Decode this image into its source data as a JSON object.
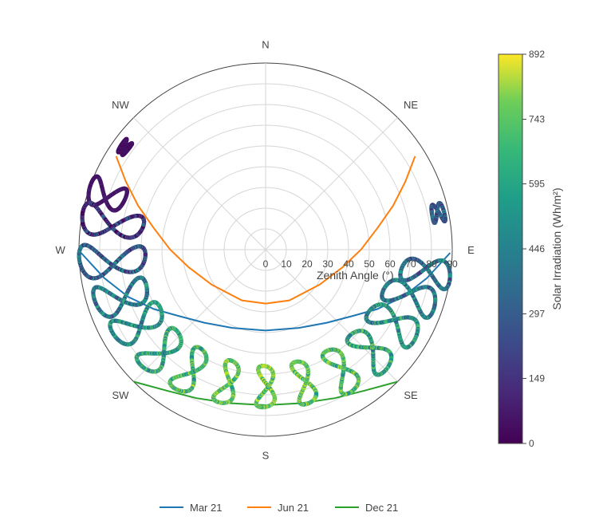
{
  "chart_data": {
    "type": "polar-scatter",
    "radial_axis": {
      "title": "Zenith Angle (°)",
      "range": [
        0,
        90
      ],
      "ticks": [
        0,
        10,
        20,
        30,
        40,
        50,
        60,
        70,
        80,
        90
      ]
    },
    "angular_axis": {
      "labels": [
        {
          "text": "N",
          "az": 0
        },
        {
          "text": "NE",
          "az": 45
        },
        {
          "text": "E",
          "az": 90
        },
        {
          "text": "SE",
          "az": 135
        },
        {
          "text": "S",
          "az": 180
        },
        {
          "text": "SW",
          "az": 225
        },
        {
          "text": "W",
          "az": 270
        },
        {
          "text": "NW",
          "az": 315
        }
      ]
    },
    "grid": true,
    "colorbar": {
      "title": "Solar Irradiation (Wh/m²)",
      "range": [
        0,
        892
      ],
      "ticks": [
        0,
        149,
        297,
        446,
        595,
        743,
        892
      ],
      "colorscale": "viridis"
    },
    "legend_position": "bottom-center",
    "series": [
      {
        "name": "Mar 21",
        "color": "#1f77b4",
        "points": [
          [
            91,
            89
          ],
          [
            100,
            79
          ],
          [
            109,
            70
          ],
          [
            118,
            61
          ],
          [
            127,
            53
          ],
          [
            140,
            46
          ],
          [
            157,
            41
          ],
          [
            180,
            39
          ],
          [
            203,
            41
          ],
          [
            220,
            46
          ],
          [
            233,
            53
          ],
          [
            242,
            61
          ],
          [
            251,
            70
          ],
          [
            260,
            79
          ],
          [
            269,
            89
          ]
        ]
      },
      {
        "name": "Jun 21",
        "color": "#ff7f0e",
        "points": [
          [
            58,
            85
          ],
          [
            64,
            75
          ],
          [
            71,
            65
          ],
          [
            79,
            55
          ],
          [
            90,
            46
          ],
          [
            103,
            38
          ],
          [
            123,
            31
          ],
          [
            155,
            27
          ],
          [
            180,
            26
          ],
          [
            205,
            27
          ],
          [
            237,
            31
          ],
          [
            257,
            38
          ],
          [
            270,
            46
          ],
          [
            281,
            55
          ],
          [
            289,
            65
          ],
          [
            296,
            75
          ],
          [
            302,
            85
          ]
        ]
      },
      {
        "name": "Dec 21",
        "color": "#2ca02c",
        "points": [
          [
            225,
            90
          ],
          [
            215,
            83
          ],
          [
            205,
            79
          ],
          [
            193,
            76
          ],
          [
            180,
            75
          ],
          [
            167,
            76
          ],
          [
            155,
            79
          ],
          [
            145,
            83
          ],
          [
            135,
            90
          ]
        ]
      }
    ],
    "analemmas": [
      {
        "az": 306,
        "zmin": 82,
        "zmax": 86,
        "loop_width": 5,
        "level": 0.04
      },
      {
        "az": 289,
        "zmin": 72,
        "zmax": 90,
        "loop_width": 9,
        "level": 0.06
      },
      {
        "az": 280,
        "zmin": 60,
        "zmax": 90,
        "loop_width": 10,
        "level": 0.12
      },
      {
        "az": 266,
        "zmin": 58,
        "zmax": 90,
        "loop_width": 11,
        "level": 0.3
      },
      {
        "az": 252,
        "zmin": 60,
        "zmax": 86,
        "loop_width": 11,
        "level": 0.4
      },
      {
        "az": 240,
        "zmin": 58,
        "zmax": 84,
        "loop_width": 10,
        "level": 0.5
      },
      {
        "az": 226,
        "zmin": 58,
        "zmax": 82,
        "loop_width": 9,
        "level": 0.58
      },
      {
        "az": 212,
        "zmin": 57,
        "zmax": 80,
        "loop_width": 8,
        "level": 0.66
      },
      {
        "az": 196,
        "zmin": 56,
        "zmax": 77,
        "loop_width": 7,
        "level": 0.72
      },
      {
        "az": 180,
        "zmin": 56,
        "zmax": 76,
        "loop_width": 7,
        "level": 0.75
      },
      {
        "az": 164,
        "zmin": 56,
        "zmax": 77,
        "loop_width": 7,
        "level": 0.72
      },
      {
        "az": 148,
        "zmin": 57,
        "zmax": 80,
        "loop_width": 8,
        "level": 0.66
      },
      {
        "az": 134,
        "zmin": 58,
        "zmax": 82,
        "loop_width": 9,
        "level": 0.58
      },
      {
        "az": 120,
        "zmin": 58,
        "zmax": 84,
        "loop_width": 10,
        "level": 0.5
      },
      {
        "az": 108,
        "zmin": 60,
        "zmax": 86,
        "loop_width": 10,
        "level": 0.42
      },
      {
        "az": 98,
        "zmin": 66,
        "zmax": 90,
        "loop_width": 9,
        "level": 0.36
      },
      {
        "az": 78,
        "zmin": 82,
        "zmax": 88,
        "loop_width": 6,
        "level": 0.3
      }
    ]
  }
}
